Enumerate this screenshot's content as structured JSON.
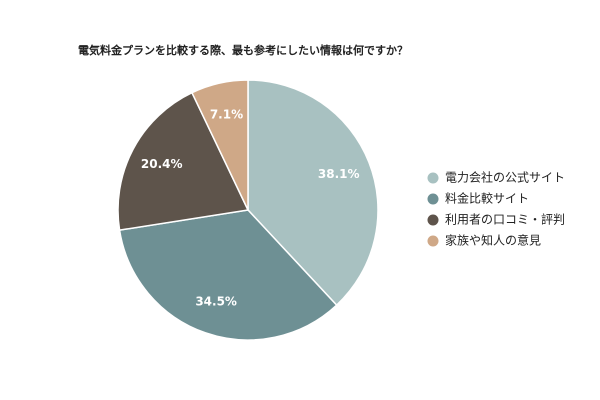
{
  "chart_data": {
    "type": "pie",
    "title": "電気料金プランを比較する際、最も参考にしたい情報は何ですか？",
    "categories": [
      "電力会社の公式サイト",
      "料金比較サイト",
      "利用者の口コミ・評判",
      "家族や知人の意見"
    ],
    "values": [
      38.1,
      34.5,
      20.4,
      7.1
    ],
    "value_labels": [
      "38.1%",
      "34.5%",
      "20.4%",
      "7.1%"
    ],
    "colors": [
      "#a8c1c1",
      "#6e9094",
      "#5e544b",
      "#cfa887"
    ],
    "legend": "right"
  }
}
